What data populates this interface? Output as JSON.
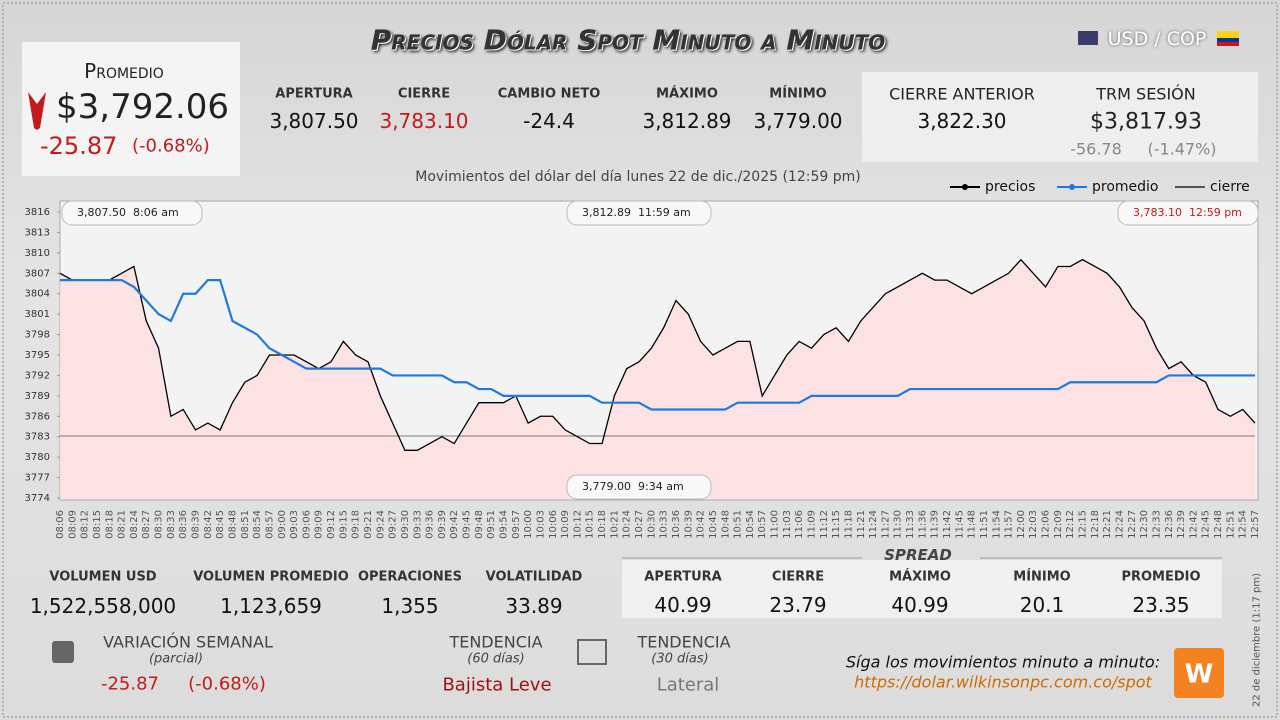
{
  "header": {
    "title": "Precios Dólar Spot Minuto a Minuto",
    "pair": "USD / COP"
  },
  "summary": {
    "label": "Promedio",
    "price": "$3,792.06",
    "change": "-25.87",
    "change_pct": "(-0.68%)"
  },
  "stats": [
    {
      "label": "APERTURA",
      "value": "3,807.50"
    },
    {
      "label": "CIERRE",
      "value": "3,783.10"
    },
    {
      "label": "CAMBIO NETO",
      "value": "-24.4"
    },
    {
      "label": "MÁXIMO",
      "value": "3,812.89"
    },
    {
      "label": "MÍNIMO",
      "value": "3,779.00"
    }
  ],
  "previous": {
    "label": "CIERRE ANTERIOR",
    "value": "3,822.30"
  },
  "trm": {
    "label": "TRM SESIÓN",
    "value": "$3,817.93",
    "change": "-56.78",
    "change_pct": "(-1.47%)"
  },
  "chart_data": {
    "type": "line",
    "title": "Movimientos del dólar del día lunes 22 de dic./2025 (12:59 pm)",
    "categories": [
      "08:06",
      "08:09",
      "08:12",
      "08:15",
      "08:18",
      "08:21",
      "08:24",
      "08:27",
      "08:30",
      "08:33",
      "08:36",
      "08:39",
      "08:42",
      "08:45",
      "08:48",
      "08:51",
      "08:54",
      "08:57",
      "09:00",
      "09:03",
      "09:06",
      "09:09",
      "09:12",
      "09:15",
      "09:18",
      "09:21",
      "09:24",
      "09:27",
      "09:30",
      "09:33",
      "09:36",
      "09:39",
      "09:42",
      "09:45",
      "09:48",
      "09:51",
      "09:54",
      "09:57",
      "10:00",
      "10:03",
      "10:06",
      "10:09",
      "10:12",
      "10:15",
      "10:18",
      "10:21",
      "10:24",
      "10:27",
      "10:30",
      "10:33",
      "10:36",
      "10:39",
      "10:42",
      "10:45",
      "10:48",
      "10:51",
      "10:54",
      "10:57",
      "11:00",
      "11:03",
      "11:06",
      "11:09",
      "11:12",
      "11:15",
      "11:18",
      "11:21",
      "11:24",
      "11:27",
      "11:30",
      "11:33",
      "11:36",
      "11:39",
      "11:42",
      "11:45",
      "11:48",
      "11:51",
      "11:54",
      "11:57",
      "12:00",
      "12:03",
      "12:06",
      "12:09",
      "12:12",
      "12:15",
      "12:18",
      "12:21",
      "12:24",
      "12:27",
      "12:30",
      "12:33",
      "12:36",
      "12:39",
      "12:42",
      "12:45",
      "12:48",
      "12:51",
      "12:54",
      "12:57"
    ],
    "series": [
      {
        "name": "precios",
        "color": "#000000",
        "values": [
          3807,
          3806,
          3806,
          3806,
          3806,
          3807,
          3808,
          3800,
          3796,
          3786,
          3787,
          3784,
          3785,
          3784,
          3788,
          3791,
          3792,
          3795,
          3795,
          3795,
          3794,
          3793,
          3794,
          3797,
          3795,
          3794,
          3789,
          3785,
          3781,
          3781,
          3782,
          3783,
          3782,
          3785,
          3788,
          3788,
          3788,
          3789,
          3785,
          3786,
          3786,
          3784,
          3783,
          3782,
          3782,
          3789,
          3793,
          3794,
          3796,
          3799,
          3803,
          3801,
          3797,
          3795,
          3796,
          3797,
          3797,
          3789,
          3792,
          3795,
          3797,
          3796,
          3798,
          3799,
          3797,
          3800,
          3802,
          3804,
          3805,
          3806,
          3807,
          3806,
          3806,
          3805,
          3804,
          3805,
          3806,
          3807,
          3809,
          3807,
          3805,
          3808,
          3808,
          3809,
          3808,
          3807,
          3805,
          3802,
          3800,
          3796,
          3793,
          3794,
          3792,
          3791,
          3787,
          3786,
          3787,
          3785
        ]
      },
      {
        "name": "promedio",
        "color": "#1f7ae0",
        "values": [
          3806,
          3806,
          3806,
          3806,
          3806,
          3806,
          3805,
          3803,
          3801,
          3800,
          3804,
          3804,
          3806,
          3806,
          3800,
          3799,
          3798,
          3796,
          3795,
          3794,
          3793,
          3793,
          3793,
          3793,
          3793,
          3793,
          3793,
          3792,
          3792,
          3792,
          3792,
          3792,
          3791,
          3791,
          3790,
          3790,
          3789,
          3789,
          3789,
          3789,
          3789,
          3789,
          3789,
          3789,
          3788,
          3788,
          3788,
          3788,
          3787,
          3787,
          3787,
          3787,
          3787,
          3787,
          3787,
          3788,
          3788,
          3788,
          3788,
          3788,
          3788,
          3789,
          3789,
          3789,
          3789,
          3789,
          3789,
          3789,
          3789,
          3790,
          3790,
          3790,
          3790,
          3790,
          3790,
          3790,
          3790,
          3790,
          3790,
          3790,
          3790,
          3790,
          3791,
          3791,
          3791,
          3791,
          3791,
          3791,
          3791,
          3791,
          3792,
          3792,
          3792,
          3792,
          3792,
          3792,
          3792,
          3792
        ]
      }
    ],
    "reference_line": {
      "name": "cierre",
      "value": 3783.1,
      "color": "#555555"
    },
    "area_color": "#fde0e0",
    "ylim": [
      3774,
      3816
    ],
    "yticks": [
      3774,
      3777,
      3780,
      3783,
      3786,
      3789,
      3792,
      3795,
      3798,
      3801,
      3804,
      3807,
      3810,
      3813,
      3816
    ],
    "annotations": [
      {
        "value": "3,807.50",
        "time": "8:06 am"
      },
      {
        "value": "3,812.89",
        "time": "11:59 am"
      },
      {
        "value": "3,783.10",
        "time": "12:59 pm"
      },
      {
        "value": "3,779.00",
        "time": "9:34 am"
      }
    ]
  },
  "volume": [
    {
      "label": "VOLUMEN USD",
      "value": "1,522,558,000"
    },
    {
      "label": "VOLUMEN PROMEDIO",
      "value": "1,123,659"
    },
    {
      "label": "OPERACIONES",
      "value": "1,355"
    },
    {
      "label": "VOLATILIDAD",
      "value": "33.89"
    }
  ],
  "spread": {
    "title": "Spread",
    "items": [
      {
        "label": "APERTURA",
        "value": "40.99"
      },
      {
        "label": "CIERRE",
        "value": "23.79"
      },
      {
        "label": "MÁXIMO",
        "value": "40.99"
      },
      {
        "label": "MÍNIMO",
        "value": "20.1"
      },
      {
        "label": "PROMEDIO",
        "value": "23.35"
      }
    ]
  },
  "weekly": {
    "label": "VARIACIÓN SEMANAL",
    "note": "(parcial)",
    "change": "-25.87",
    "change_pct": "(-0.68%)"
  },
  "trend60": {
    "label": "TENDENCIA",
    "note": "(60 días)",
    "value": "Bajista Leve"
  },
  "trend30": {
    "label": "TENDENCIA",
    "note": "(30 días)",
    "value": "Lateral"
  },
  "footer": {
    "text": "Síga los movimientos minuto a minuto:",
    "url": "https://dolar.wilkinsonpc.com.co/spot",
    "stamp": "22 de diciembre (1:17 pm)"
  }
}
